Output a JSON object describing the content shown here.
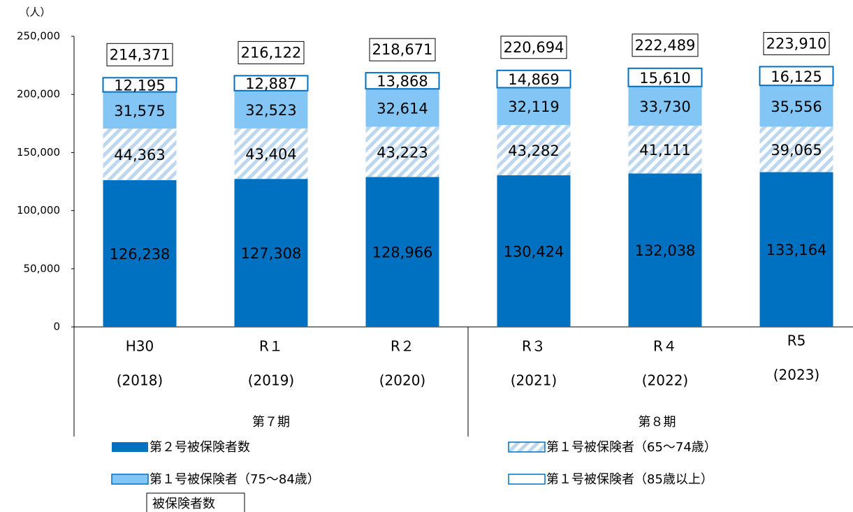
{
  "chart_data": {
    "type": "stacked_bar",
    "y_unit": "（人）",
    "categories": [
      "H30",
      "R１",
      "R２",
      "R３",
      "R４",
      "R5"
    ],
    "category_sublabels": [
      "(2018)",
      "(2019)",
      "(2020)",
      "(2021)",
      "(2022)",
      "(2023)"
    ],
    "groups": [
      {
        "label": "第７期",
        "span": 3
      },
      {
        "label": "第８期",
        "span": 3
      }
    ],
    "ylim": [
      0,
      250000
    ],
    "yticks": [
      0,
      {
        "value": 50000,
        "label": "50,000"
      },
      {
        "value": 100000,
        "label": "100,000"
      },
      {
        "value": 150000,
        "label": "150,000"
      },
      {
        "value": 200000,
        "label": "200,000"
      },
      {
        "value": 250000,
        "label": "250,000"
      }
    ],
    "series": [
      {
        "name": "第２号被保険者数",
        "color": "#0070c0",
        "fill": "solid",
        "values": [
          126238,
          127308,
          128966,
          130424,
          132038,
          133164
        ],
        "value_labels": [
          "126,238",
          "127,308",
          "128,966",
          "130,424",
          "132,038",
          "133,164"
        ]
      },
      {
        "name": "第１号被保険者（65～74歳）",
        "color": "#bdd7ee",
        "fill": "hatch",
        "values": [
          44363,
          43404,
          43223,
          43282,
          41111,
          39065
        ],
        "value_labels": [
          "44,363",
          "43,404",
          "43,223",
          "43,282",
          "41,111",
          "39,065"
        ]
      },
      {
        "name": "第１号被保険者（75～84歳）",
        "color": "#83c5f5",
        "fill": "solid",
        "values": [
          31575,
          32523,
          32614,
          32119,
          33730,
          35556
        ],
        "value_labels": [
          "31,575",
          "32,523",
          "32,614",
          "32,119",
          "33,730",
          "35,556"
        ]
      },
      {
        "name": "第１号被保険者（85歳以上）",
        "color": "#ffffff",
        "fill": "outline",
        "values": [
          12195,
          12887,
          13868,
          14869,
          15610,
          16125
        ],
        "value_labels": [
          "12,195",
          "12,887",
          "13,868",
          "14,869",
          "15,610",
          "16,125"
        ]
      }
    ],
    "totals": {
      "name": "被保険者数",
      "values": [
        214371,
        216122,
        218671,
        220694,
        222489,
        223910
      ],
      "value_labels": [
        "214,371",
        "216,122",
        "218,671",
        "220,694",
        "222,489",
        "223,910"
      ]
    }
  }
}
